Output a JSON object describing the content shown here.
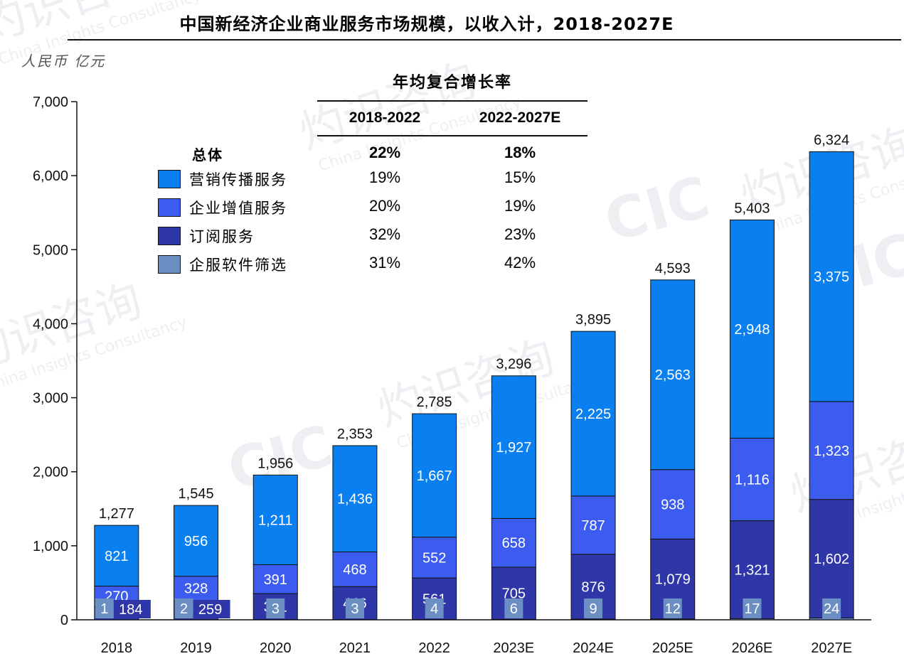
{
  "title": "中国新经济企业商业服务市场规模，以收入计，2018-2027E",
  "unit": "人民币 亿元",
  "colors": {
    "marketing": "#0a7ff0",
    "value_added": "#3c5cf0",
    "subscription": "#2f37a8",
    "software": "#6b8fc2"
  },
  "chart_data": {
    "type": "bar",
    "stacked": true,
    "categories": [
      "2018",
      "2019",
      "2020",
      "2021",
      "2022",
      "2023E",
      "2024E",
      "2025E",
      "2026E",
      "2027E"
    ],
    "series": [
      {
        "name": "企服软件筛选",
        "values": [
          1,
          2,
          3,
          3,
          4,
          6,
          9,
          12,
          17,
          24
        ]
      },
      {
        "name": "订阅服务",
        "values": [
          184,
          259,
          351,
          446,
          561,
          705,
          876,
          1079,
          1321,
          1602
        ]
      },
      {
        "name": "企业增值服务",
        "values": [
          270,
          328,
          391,
          468,
          552,
          658,
          787,
          938,
          1116,
          1323
        ]
      },
      {
        "name": "营销传播服务",
        "values": [
          821,
          956,
          1211,
          1436,
          1667,
          1927,
          2225,
          2563,
          2948,
          3375
        ]
      }
    ],
    "totals": [
      "1,277",
      "1,545",
      "1,956",
      "2,353",
      "2,785",
      "3,296",
      "3,895",
      "4,593",
      "5,403",
      "6,324"
    ],
    "ylim": [
      0,
      7000
    ],
    "yticks": [
      "0",
      "1,000",
      "2,000",
      "3,000",
      "4,000",
      "5,000",
      "6,000",
      "7,000"
    ],
    "xlabel": "",
    "ylabel": "人民币 亿元"
  },
  "cagr": {
    "heading": "年均复合增长率",
    "periods": [
      "2018-2022",
      "2022-2027E"
    ],
    "total_label": "总体",
    "total_values": [
      "22%",
      "18%"
    ],
    "rows": [
      {
        "label": "营销传播服务",
        "values": [
          "19%",
          "15%"
        ]
      },
      {
        "label": "企业增值服务",
        "values": [
          "20%",
          "19%"
        ]
      },
      {
        "label": "订阅服务",
        "values": [
          "32%",
          "23%"
        ]
      },
      {
        "label": "企服软件筛选",
        "values": [
          "31%",
          "42%"
        ]
      }
    ]
  },
  "watermark": {
    "cn": "灼识咨询",
    "en": "China Insights Consultancy",
    "logo": "CIC"
  }
}
